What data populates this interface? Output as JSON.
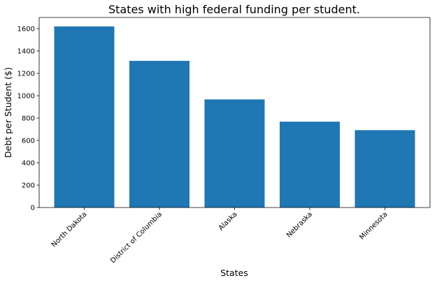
{
  "chart_data": {
    "type": "bar",
    "title": "States with high federal funding per student.",
    "xlabel": "States",
    "ylabel": "Debt per Student ($)",
    "categories": [
      "North Dakota",
      "District of Columbia",
      "Alaska",
      "Nebraska",
      "Minnesota"
    ],
    "values": [
      1620,
      1312,
      967,
      768,
      692
    ],
    "ylim": [
      0,
      1700
    ],
    "yticks": [
      0,
      200,
      400,
      600,
      800,
      1000,
      1200,
      1400,
      1600
    ],
    "bar_color": "#1f77b4",
    "grid": false,
    "legend": "none"
  }
}
